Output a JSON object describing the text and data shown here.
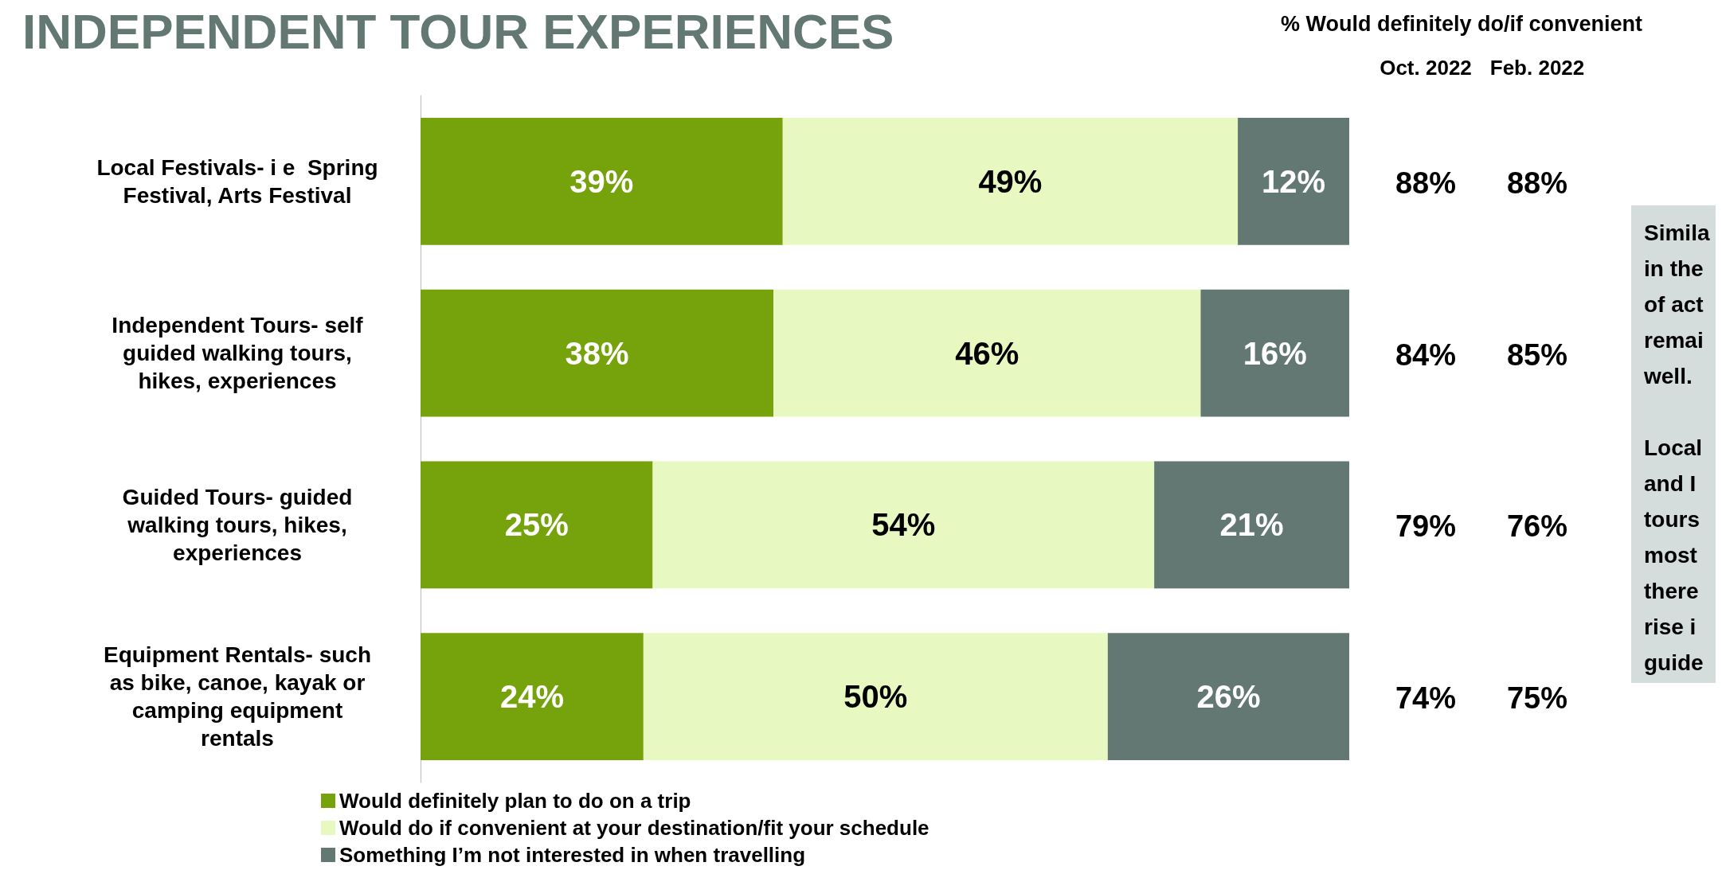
{
  "chart_data": {
    "type": "bar",
    "orientation": "horizontal",
    "stacked": true,
    "title": "INDEPENDENT TOUR EXPERIENCES",
    "categories": [
      "Local Festivals- i e  Spring\nFestival, Arts Festival",
      "Independent Tours- self\nguided walking tours,\nhikes, experiences",
      "Guided Tours- guided\nwalking tours, hikes,\nexperiences",
      "Equipment Rentals- such\nas bike, canoe, kayak or\ncamping equipment\nrentals"
    ],
    "series": [
      {
        "name": "Would definitely plan to do on a trip",
        "color": "#76a20c",
        "values": [
          39,
          38,
          25,
          24
        ],
        "value_labels": [
          "39%",
          "38%",
          "25%",
          "24%"
        ]
      },
      {
        "name": "Would do if convenient at your destination/fit your schedule",
        "color": "#e8f8c1",
        "values": [
          49,
          46,
          54,
          50
        ],
        "value_labels": [
          "49%",
          "46%",
          "54%",
          "50%"
        ]
      },
      {
        "name": "Something I’m not interested in when travelling",
        "color": "#637873",
        "values": [
          12,
          16,
          21,
          26
        ],
        "value_labels": [
          "12%",
          "16%",
          "21%",
          "26%"
        ]
      }
    ],
    "legend": "bottom left",
    "tick_labels": "y",
    "annotations": [
      "% Would definitely do/if convenient",
      "Oct. 2022",
      "Feb. 2022",
      "88%",
      "88%",
      "84%",
      "85%",
      "79%",
      "76%",
      "74%",
      "75%",
      "Simila\nin the\nof act\nremai\nwell.\n\nLocal\nand I\ntours\nmost\nthere\nrise i\nguide"
    ]
  }
}
